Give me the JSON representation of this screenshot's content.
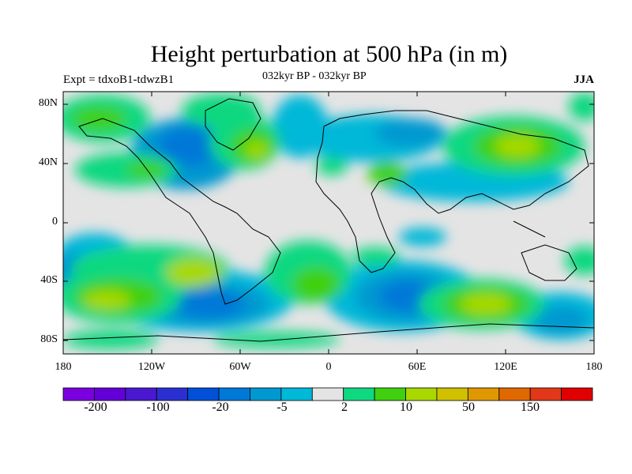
{
  "title": "Height perturbation at 500 hPa (in m)",
  "subtitle_left": "Expt = tdxoB1-tdwzB1",
  "subtitle_center": "032kyr BP - 032kyr BP",
  "subtitle_right": "JJA",
  "lat_labels": [
    "80N",
    "40N",
    "0",
    "40S",
    "80S"
  ],
  "lon_labels": [
    "180",
    "120W",
    "60W",
    "0",
    "60E",
    "120E",
    "180"
  ],
  "colorbar": {
    "colors": [
      "#7a00e0",
      "#6300d8",
      "#4a18d0",
      "#2a30d0",
      "#0050d8",
      "#0078d8",
      "#0098d0",
      "#00b8d8",
      "#e4e4e4",
      "#10d880",
      "#40d010",
      "#a8d800",
      "#d0c000",
      "#e09800",
      "#e06800",
      "#e03818",
      "#e00000"
    ],
    "labels": [
      "-200",
      "-100",
      "-20",
      "-5",
      "2",
      "10",
      "50",
      "150"
    ]
  },
  "background_color": "#e4e4e4"
}
